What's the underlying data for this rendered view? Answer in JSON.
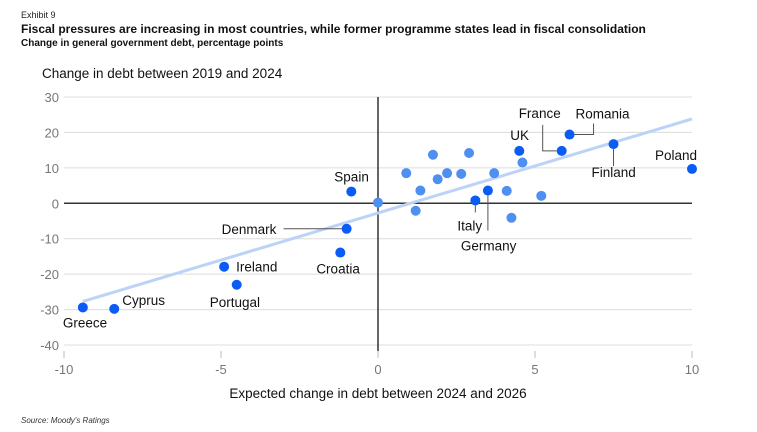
{
  "header": {
    "exhibit": "Exhibit 9",
    "title": "Fiscal pressures are increasing in most countries, while former programme states lead in fiscal consolidation",
    "subtitle": "Change in general government debt, percentage points"
  },
  "footer": {
    "source": "Source: Moody's Ratings"
  },
  "colors": {
    "highlight": "#0a5cf5",
    "other": "#4f8ff0",
    "trend": "#bcd2f6",
    "grid": "#dcdcdc",
    "zero_axis": "#333333"
  },
  "chart_data": {
    "type": "scatter",
    "title": "Fiscal pressures are increasing in most countries, while former programme states lead in fiscal consolidation",
    "subtitle": "Change in general government debt, percentage points",
    "xlabel": "Expected change in debt between 2024 and 2026",
    "ylabel": "Change in debt between 2019 and 2024",
    "xlim": [
      -10,
      10
    ],
    "ylim": [
      -40,
      30
    ],
    "xticks": [
      -10,
      -5,
      0,
      5,
      10
    ],
    "yticks": [
      30,
      20,
      10,
      0,
      -10,
      -20,
      -30,
      -40
    ],
    "grid": true,
    "trendline": {
      "x": [
        -9.4,
        10
      ],
      "y": [
        -27.7,
        23.8
      ]
    },
    "labeled_points": [
      {
        "name": "Greece",
        "x": -9.4,
        "y": -29.4
      },
      {
        "name": "Cyprus",
        "x": -8.4,
        "y": -29.8
      },
      {
        "name": "Ireland",
        "x": -4.9,
        "y": -17.9
      },
      {
        "name": "Portugal",
        "x": -4.5,
        "y": -23.0
      },
      {
        "name": "Croatia",
        "x": -1.2,
        "y": -13.9
      },
      {
        "name": "Denmark",
        "x": -1.0,
        "y": -7.2
      },
      {
        "name": "Spain",
        "x": -0.85,
        "y": 3.3
      },
      {
        "name": "Italy",
        "x": 3.1,
        "y": 0.8
      },
      {
        "name": "Germany",
        "x": 3.5,
        "y": 3.6
      },
      {
        "name": "UK",
        "x": 4.5,
        "y": 14.8
      },
      {
        "name": "France",
        "x": 5.85,
        "y": 14.8
      },
      {
        "name": "Romania",
        "x": 6.1,
        "y": 19.4
      },
      {
        "name": "Finland",
        "x": 7.5,
        "y": 16.7
      },
      {
        "name": "Poland",
        "x": 10.0,
        "y": 9.7
      }
    ],
    "other_points": [
      {
        "x": 0.0,
        "y": 0.2
      },
      {
        "x": 0.9,
        "y": 8.5
      },
      {
        "x": 1.2,
        "y": -2.1
      },
      {
        "x": 1.35,
        "y": 3.6
      },
      {
        "x": 1.75,
        "y": 13.7
      },
      {
        "x": 1.9,
        "y": 6.8
      },
      {
        "x": 2.2,
        "y": 8.5
      },
      {
        "x": 2.65,
        "y": 8.3
      },
      {
        "x": 2.9,
        "y": 14.2
      },
      {
        "x": 3.7,
        "y": 8.5
      },
      {
        "x": 4.1,
        "y": 3.5
      },
      {
        "x": 4.25,
        "y": -4.1
      },
      {
        "x": 4.6,
        "y": 11.5
      },
      {
        "x": 5.2,
        "y": 2.1
      }
    ]
  }
}
